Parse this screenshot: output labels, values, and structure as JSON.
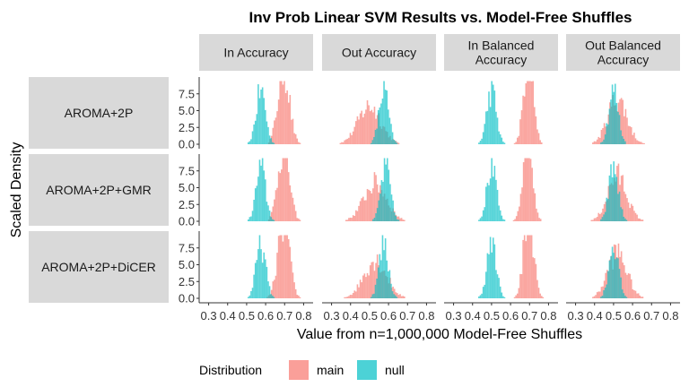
{
  "chart_data": {
    "type": "histogram",
    "title": "Inv Prob Linear SVM Results vs. Model-Free Shuffles",
    "xlabel": "Value from n=1,000,000 Model-Free Shuffles",
    "ylabel": "Scaled Density",
    "xlim": [
      0.25,
      0.85
    ],
    "ylim": [
      0,
      10
    ],
    "x_ticks": [
      "0.3",
      "0.4",
      "0.5",
      "0.6",
      "0.7",
      "0.8"
    ],
    "x_tick_values": [
      0.3,
      0.4,
      0.5,
      0.6,
      0.7,
      0.8
    ],
    "y_ticks": [
      "0.0",
      "2.5",
      "5.0",
      "7.5"
    ],
    "y_tick_values": [
      0,
      2.5,
      5,
      7.5
    ],
    "legend": {
      "title": "Distribution",
      "position": "bottom-left",
      "entries": [
        {
          "label": "main",
          "color": "#F8766D"
        },
        {
          "label": "null",
          "color": "#00BFC4"
        }
      ]
    },
    "colors": {
      "main": "#F8766D",
      "null": "#00BFC4",
      "strip": "#D9D9D9",
      "axis": "#333333"
    },
    "columns": [
      "In Accuracy",
      "Out Accuracy",
      "In Balanced\nAccuracy",
      "Out Balanced\nAccuracy"
    ],
    "rows": [
      "AROMA+2P",
      "AROMA+2P+GMR",
      "AROMA+2P+DiCER"
    ],
    "panels": [
      {
        "row": 0,
        "col": 0,
        "null": {
          "mean": 0.575,
          "sd": 0.025
        },
        "main": {
          "mean": 0.695,
          "sd": 0.03
        }
      },
      {
        "row": 0,
        "col": 1,
        "null": {
          "mean": 0.575,
          "sd": 0.025
        },
        "main": {
          "mean": 0.5,
          "sd": 0.06
        }
      },
      {
        "row": 0,
        "col": 2,
        "null": {
          "mean": 0.5,
          "sd": 0.025
        },
        "main": {
          "mean": 0.695,
          "sd": 0.025
        }
      },
      {
        "row": 0,
        "col": 3,
        "null": {
          "mean": 0.5,
          "sd": 0.025
        },
        "main": {
          "mean": 0.52,
          "sd": 0.05
        }
      },
      {
        "row": 1,
        "col": 0,
        "null": {
          "mean": 0.575,
          "sd": 0.025
        },
        "main": {
          "mean": 0.695,
          "sd": 0.03
        }
      },
      {
        "row": 1,
        "col": 1,
        "null": {
          "mean": 0.585,
          "sd": 0.025
        },
        "main": {
          "mean": 0.53,
          "sd": 0.06
        }
      },
      {
        "row": 1,
        "col": 2,
        "null": {
          "mean": 0.5,
          "sd": 0.025
        },
        "main": {
          "mean": 0.69,
          "sd": 0.025
        }
      },
      {
        "row": 1,
        "col": 3,
        "null": {
          "mean": 0.5,
          "sd": 0.025
        },
        "main": {
          "mean": 0.52,
          "sd": 0.05
        }
      },
      {
        "row": 2,
        "col": 0,
        "null": {
          "mean": 0.575,
          "sd": 0.025
        },
        "main": {
          "mean": 0.695,
          "sd": 0.03
        }
      },
      {
        "row": 2,
        "col": 1,
        "null": {
          "mean": 0.575,
          "sd": 0.025
        },
        "main": {
          "mean": 0.53,
          "sd": 0.06
        }
      },
      {
        "row": 2,
        "col": 2,
        "null": {
          "mean": 0.5,
          "sd": 0.025
        },
        "main": {
          "mean": 0.695,
          "sd": 0.025
        }
      },
      {
        "row": 2,
        "col": 3,
        "null": {
          "mean": 0.5,
          "sd": 0.025
        },
        "main": {
          "mean": 0.52,
          "sd": 0.05
        }
      }
    ]
  }
}
